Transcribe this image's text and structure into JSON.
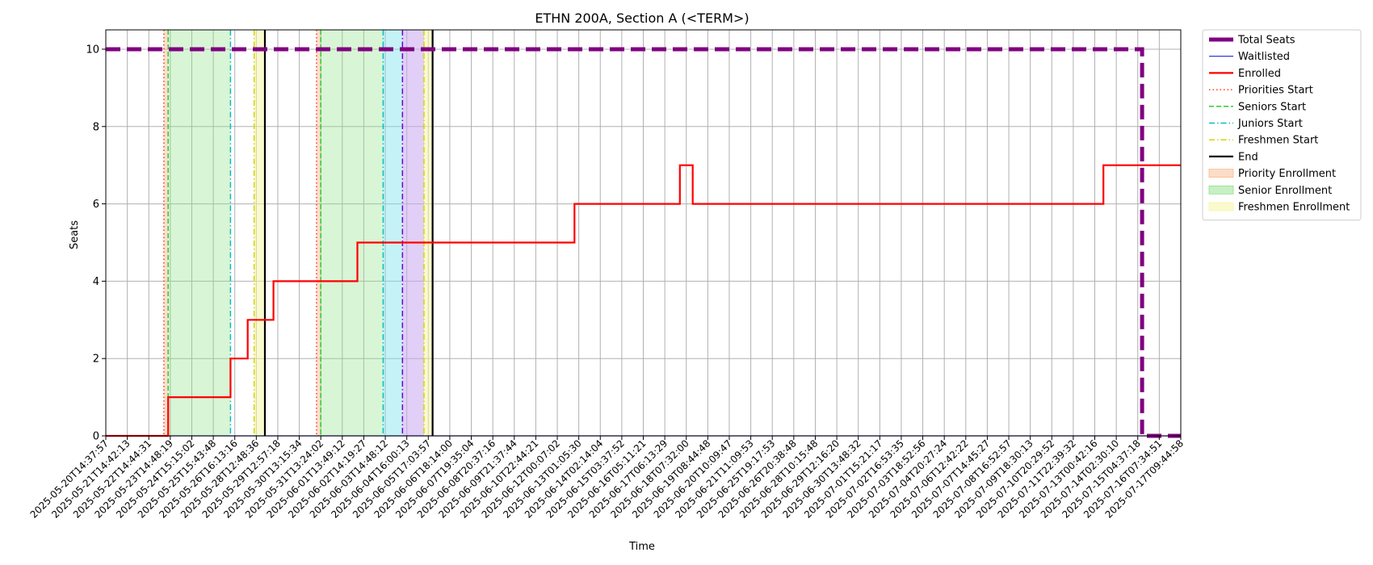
{
  "chart_data": {
    "type": "line",
    "title": "ETHN 200A, Section A (<TERM>)",
    "xlabel": "Time",
    "ylabel": "Seats",
    "xlim": [
      0,
      50
    ],
    "ylim": [
      0,
      10.5
    ],
    "yticks": [
      0,
      2,
      4,
      6,
      8,
      10
    ],
    "grid": true,
    "legend_position": "outside-top-right",
    "x_tick_labels": [
      "2025-05-20T14:37:57",
      "2025-05-21T14:42:13",
      "2025-05-22T14:44:31",
      "2025-05-23T14:48:19",
      "2025-05-24T15:15:02",
      "2025-05-25T15:43:48",
      "2025-05-26T16:13:16",
      "2025-05-28T12:48:36",
      "2025-05-29T12:57:18",
      "2025-05-30T13:15:34",
      "2025-05-31T13:24:02",
      "2025-06-01T13:49:12",
      "2025-06-02T14:19:27",
      "2025-06-03T14:48:12",
      "2025-06-04T16:00:13",
      "2025-06-05T17:03:57",
      "2025-06-06T18:14:00",
      "2025-06-07T19:35:04",
      "2025-06-08T20:37:16",
      "2025-06-09T21:37:44",
      "2025-06-10T22:44:21",
      "2025-06-12T00:07:02",
      "2025-06-13T01:05:30",
      "2025-06-14T02:14:04",
      "2025-06-15T03:37:52",
      "2025-06-16T05:11:21",
      "2025-06-17T06:13:29",
      "2025-06-18T07:32:00",
      "2025-06-19T08:44:48",
      "2025-06-20T10:09:47",
      "2025-06-21T11:09:53",
      "2025-06-25T19:17:53",
      "2025-06-26T20:38:48",
      "2025-06-28T10:15:48",
      "2025-06-29T12:16:20",
      "2025-06-30T13:48:32",
      "2025-07-01T15:21:17",
      "2025-07-02T16:53:35",
      "2025-07-03T18:52:56",
      "2025-07-04T20:27:24",
      "2025-07-06T12:42:22",
      "2025-07-07T14:45:27",
      "2025-07-08T16:52:57",
      "2025-07-09T18:30:13",
      "2025-07-10T20:29:52",
      "2025-07-11T22:39:32",
      "2025-07-13T00:42:16",
      "2025-07-14T02:30:10",
      "2025-07-15T04:37:18",
      "2025-07-16T07:34:51",
      "2025-07-17T09:44:58"
    ],
    "series": [
      {
        "name": "Total Seats",
        "color": "#800080",
        "style": "dashed-thick",
        "points": [
          [
            0,
            10
          ],
          [
            48.2,
            10
          ],
          [
            48.2,
            0
          ],
          [
            50,
            0
          ]
        ]
      },
      {
        "name": "Waitlisted",
        "color": "#1f1fe0",
        "style": "solid-thin",
        "points": [
          [
            0,
            0
          ],
          [
            50,
            0
          ]
        ]
      },
      {
        "name": "Enrolled",
        "color": "#ff0000",
        "style": "solid",
        "points": [
          [
            0,
            0
          ],
          [
            2.9,
            0
          ],
          [
            2.9,
            1
          ],
          [
            5.8,
            1
          ],
          [
            5.8,
            2
          ],
          [
            6.6,
            2
          ],
          [
            6.6,
            3
          ],
          [
            7.8,
            3
          ],
          [
            7.8,
            4
          ],
          [
            11.7,
            4
          ],
          [
            11.7,
            5
          ],
          [
            21.8,
            5
          ],
          [
            21.8,
            6
          ],
          [
            26.7,
            6
          ],
          [
            26.7,
            7
          ],
          [
            27.3,
            7
          ],
          [
            27.3,
            6
          ],
          [
            46.4,
            6
          ],
          [
            46.4,
            7
          ],
          [
            50,
            7
          ]
        ]
      }
    ],
    "vertical_markers": [
      {
        "name": "Priorities Start",
        "color": "#ff3b1f",
        "style": "dotted",
        "x": [
          2.7,
          9.8
        ]
      },
      {
        "name": "Seniors Start",
        "color": "#2ecc2e",
        "style": "dashed",
        "x": [
          2.9,
          10.0
        ]
      },
      {
        "name": "Juniors Start",
        "color": "#00bfbf",
        "style": "dashdot",
        "x": [
          5.8,
          12.9
        ]
      },
      {
        "name": "Freshmen Start",
        "color": "#d4d400",
        "style": "dashdot",
        "x": [
          6.9,
          14.8
        ]
      },
      {
        "name": "End",
        "color": "#000000",
        "style": "solid",
        "x": [
          7.4,
          15.2
        ]
      }
    ],
    "extra_markers": [
      {
        "color": "#6a00d0",
        "style": "dashdot",
        "x": 13.8
      }
    ],
    "shaded_regions": [
      {
        "name": "Priority Enrollment",
        "color": "#f9b98f",
        "opacity": 0.45,
        "legend": true,
        "ranges": [
          [
            2.7,
            2.9
          ],
          [
            9.8,
            10.0
          ]
        ]
      },
      {
        "name": "Senior Enrollment",
        "color": "#90e28a",
        "opacity": 0.35,
        "legend": true,
        "ranges": [
          [
            2.9,
            5.8
          ],
          [
            10.0,
            12.9
          ]
        ]
      },
      {
        "name": "Freshmen Enrollment",
        "color": "#f6f6a0",
        "opacity": 0.5,
        "legend": true,
        "ranges": [
          [
            6.9,
            7.4
          ],
          [
            14.8,
            15.2
          ]
        ]
      },
      {
        "color": "#7fe3ea",
        "opacity": 0.45,
        "legend": false,
        "ranges": [
          [
            12.9,
            13.8
          ]
        ]
      },
      {
        "color": "#c8a8f0",
        "opacity": 0.55,
        "legend": false,
        "ranges": [
          [
            13.8,
            14.8
          ]
        ]
      }
    ],
    "legend": [
      {
        "label": "Total Seats",
        "kind": "line",
        "color": "#800080",
        "style": "dashed-thick"
      },
      {
        "label": "Waitlisted",
        "kind": "line",
        "color": "#1f1fe0",
        "style": "solid-thin"
      },
      {
        "label": "Enrolled",
        "kind": "line",
        "color": "#ff0000",
        "style": "solid"
      },
      {
        "label": "Priorities Start",
        "kind": "line",
        "color": "#ff3b1f",
        "style": "dotted"
      },
      {
        "label": "Seniors Start",
        "kind": "line",
        "color": "#2ecc2e",
        "style": "dashed"
      },
      {
        "label": "Juniors Start",
        "kind": "line",
        "color": "#00bfbf",
        "style": "dashdot"
      },
      {
        "label": "Freshmen Start",
        "kind": "line",
        "color": "#d4d400",
        "style": "dashdot"
      },
      {
        "label": "End",
        "kind": "line",
        "color": "#000000",
        "style": "solid"
      },
      {
        "label": "Priority Enrollment",
        "kind": "patch",
        "color": "#f9b98f"
      },
      {
        "label": "Senior Enrollment",
        "kind": "patch",
        "color": "#90e28a"
      },
      {
        "label": "Freshmen Enrollment",
        "kind": "patch",
        "color": "#f6f6a0"
      }
    ]
  }
}
